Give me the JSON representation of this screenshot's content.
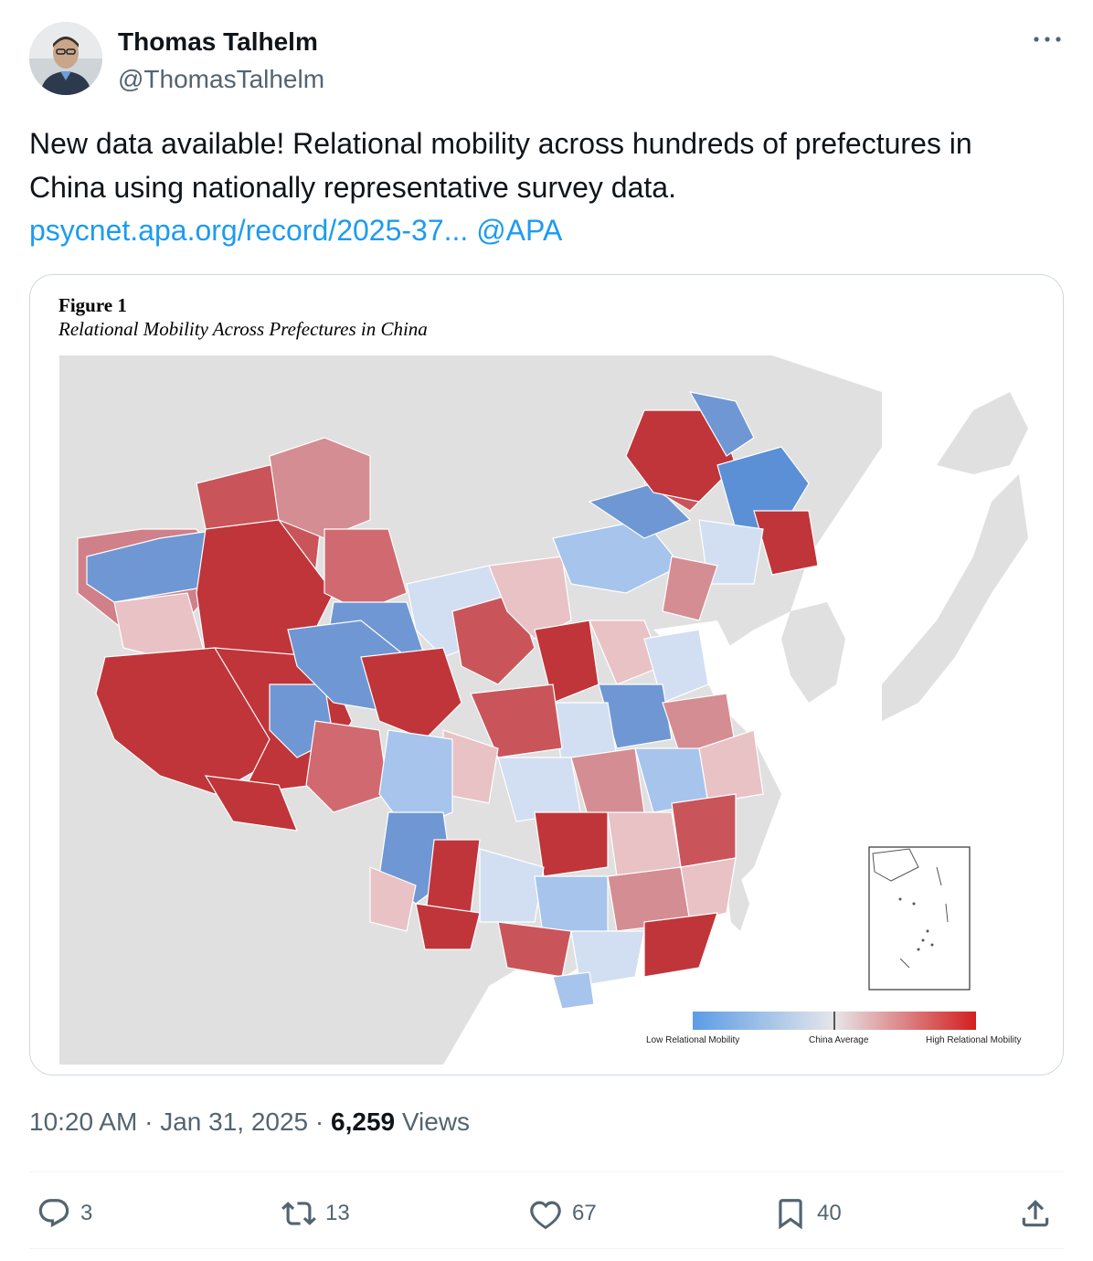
{
  "author": {
    "name": "Thomas Talhelm",
    "handle": "@ThomasTalhelm"
  },
  "tweet": {
    "text": "New data available! Relational mobility across hundreds of prefectures in China using nationally representative survey data.",
    "link_text": "psycnet.apa.org/record/2025-37...",
    "mention": "@APA"
  },
  "figure": {
    "label": "Figure 1",
    "title": "Relational Mobility Across Prefectures in China",
    "legend": {
      "low": "Low Relational Mobility",
      "mid": "China Average",
      "high": "High Relational Mobility"
    },
    "colors": {
      "low": "#5b9ce6",
      "mid": "#e6e6ea",
      "high": "#d31f1f",
      "background_land": "#e0e0e0",
      "sea": "#ffffff"
    }
  },
  "meta": {
    "time": "10:20 AM",
    "separator": "·",
    "date": "Jan 31, 2025",
    "views_count": "6,259",
    "views_label": "Views"
  },
  "actions": {
    "replies": "3",
    "reposts": "13",
    "likes": "67",
    "bookmarks": "40"
  },
  "icons": [
    "more-icon",
    "reply-icon",
    "repost-icon",
    "like-icon",
    "bookmark-icon",
    "share-icon"
  ]
}
